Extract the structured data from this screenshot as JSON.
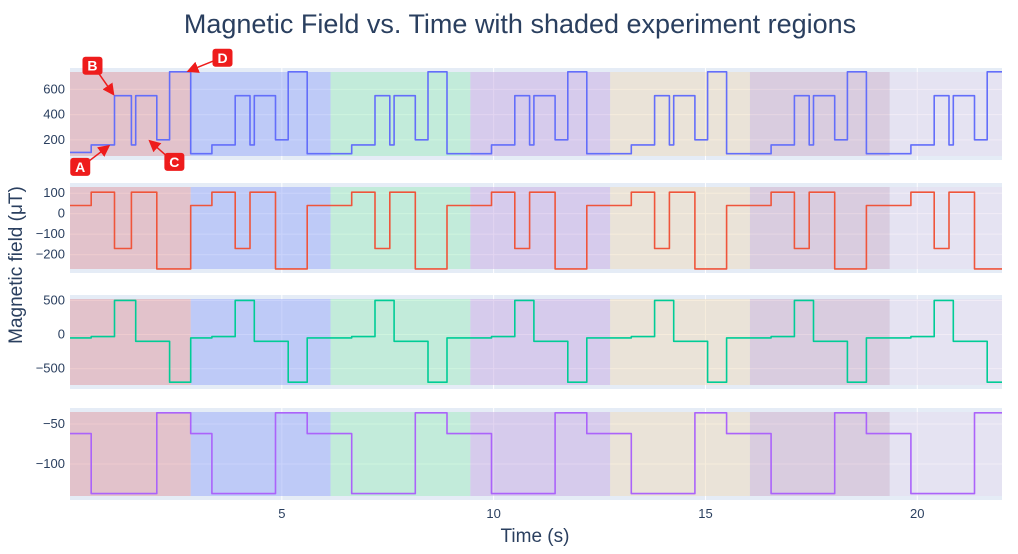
{
  "chart_data": {
    "type": "line",
    "title": "Magnetic Field vs. Time with shaded experiment regions",
    "xlabel": "Time (s)",
    "ylabel": "Magnetic field (μT)",
    "xlim": [
      0,
      22
    ],
    "x_ticks": [
      5,
      10,
      15,
      20
    ],
    "grid": true,
    "shaded_regions": [
      {
        "x0": 0.0,
        "x1": 2.85,
        "color": "#e0a0a8"
      },
      {
        "x0": 2.85,
        "x1": 6.15,
        "color": "#9faef7"
      },
      {
        "x0": 6.15,
        "x1": 9.45,
        "color": "#a6ebc2"
      },
      {
        "x0": 9.45,
        "x1": 12.75,
        "color": "#cbb1e3"
      },
      {
        "x0": 12.75,
        "x1": 16.05,
        "color": "#eedcc0"
      },
      {
        "x0": 16.05,
        "x1": 19.35,
        "color": "#cfb3cc"
      },
      {
        "x0": 19.35,
        "x1": 22.0,
        "color": "#e6dcef"
      }
    ],
    "panels": [
      {
        "color": "#636efa",
        "ylim": [
          40,
          770
        ],
        "y_ticks": [
          200,
          400,
          600
        ],
        "series": {
          "x": [
            0.0,
            0.5,
            0.5,
            1.0,
            1.05,
            1.05,
            1.45,
            1.45,
            1.55,
            1.55,
            1.95,
            2.05,
            2.05,
            2.35,
            2.35,
            2.75,
            2.85,
            2.85,
            3.35,
            3.35,
            3.85,
            3.9,
            3.9,
            4.25,
            4.25,
            4.35,
            4.35,
            4.75,
            4.85,
            4.85,
            5.15,
            5.15,
            5.55,
            5.6,
            5.6,
            6.15,
            6.65,
            6.65,
            7.15,
            7.2,
            7.2,
            7.55,
            7.55,
            7.65,
            7.65,
            8.05,
            8.15,
            8.15,
            8.45,
            8.45,
            8.85,
            8.9,
            8.9,
            9.45,
            9.95,
            9.95,
            10.45,
            10.5,
            10.5,
            10.85,
            10.85,
            10.95,
            10.95,
            11.35,
            11.45,
            11.45,
            11.75,
            11.75,
            12.15,
            12.2,
            12.2,
            12.75,
            13.25,
            13.25,
            13.75,
            13.8,
            13.8,
            14.15,
            14.15,
            14.25,
            14.25,
            14.65,
            14.75,
            14.75,
            15.05,
            15.05,
            15.45,
            15.5,
            15.5,
            16.05,
            16.55,
            16.55,
            17.05,
            17.1,
            17.1,
            17.45,
            17.45,
            17.55,
            17.55,
            17.95,
            18.05,
            18.05,
            18.35,
            18.35,
            18.75,
            18.8,
            18.8,
            19.35,
            19.85,
            19.85,
            20.35,
            20.4,
            20.4,
            20.75,
            20.75,
            20.85,
            20.85,
            21.25,
            21.35,
            21.35,
            21.65,
            21.65,
            22.0
          ],
          "y": [
            100,
            100,
            160,
            160,
            160,
            550,
            550,
            160,
            160,
            550,
            550,
            550,
            200,
            200,
            740,
            740,
            740,
            90,
            90,
            160,
            160,
            160,
            550,
            550,
            160,
            160,
            550,
            550,
            550,
            200,
            200,
            740,
            740,
            740,
            90,
            90,
            90,
            160,
            160,
            160,
            550,
            550,
            160,
            160,
            550,
            550,
            550,
            200,
            200,
            740,
            740,
            740,
            90,
            90,
            90,
            160,
            160,
            160,
            550,
            550,
            160,
            160,
            550,
            550,
            550,
            200,
            200,
            740,
            740,
            740,
            90,
            90,
            90,
            160,
            160,
            160,
            550,
            550,
            160,
            160,
            550,
            550,
            550,
            200,
            200,
            740,
            740,
            740,
            90,
            90,
            90,
            160,
            160,
            160,
            550,
            550,
            160,
            160,
            550,
            550,
            550,
            200,
            200,
            740,
            740,
            740,
            90,
            90,
            90,
            160,
            160,
            160,
            550,
            550,
            160,
            160,
            550,
            550,
            550,
            200,
            200,
            740,
            740
          ]
        }
      },
      {
        "color": "#ef553b",
        "ylim": [
          -290,
          150
        ],
        "y_ticks": [
          -200,
          -100,
          0,
          100
        ],
        "series": {
          "x": [
            0.0,
            0.5,
            0.5,
            1.0,
            1.05,
            1.05,
            1.45,
            1.45,
            1.55,
            1.55,
            1.95,
            2.05,
            2.05,
            2.35,
            2.35,
            2.75,
            2.85,
            2.85,
            3.35,
            3.35,
            3.85,
            3.9,
            3.9,
            4.25,
            4.25,
            4.35,
            4.35,
            4.75,
            4.85,
            4.85,
            5.15,
            5.15,
            5.55,
            5.6,
            5.6,
            6.15,
            6.65,
            6.65,
            7.15,
            7.2,
            7.2,
            7.55,
            7.55,
            7.65,
            7.65,
            8.05,
            8.15,
            8.15,
            8.45,
            8.45,
            8.85,
            8.9,
            8.9,
            9.45,
            9.95,
            9.95,
            10.45,
            10.5,
            10.5,
            10.85,
            10.85,
            10.95,
            10.95,
            11.35,
            11.45,
            11.45,
            11.75,
            11.75,
            12.15,
            12.2,
            12.2,
            12.75,
            13.25,
            13.25,
            13.75,
            13.8,
            13.8,
            14.15,
            14.15,
            14.25,
            14.25,
            14.65,
            14.75,
            14.75,
            15.05,
            15.05,
            15.45,
            15.5,
            15.5,
            16.05,
            16.55,
            16.55,
            17.05,
            17.1,
            17.1,
            17.45,
            17.45,
            17.55,
            17.55,
            17.95,
            18.05,
            18.05,
            18.35,
            18.35,
            18.75,
            18.8,
            18.8,
            19.35,
            19.85,
            19.85,
            20.35,
            20.4,
            20.4,
            20.75,
            20.75,
            20.85,
            20.85,
            21.25,
            21.35,
            21.35,
            21.65,
            21.65,
            22.0
          ],
          "y": [
            40,
            40,
            105,
            105,
            105,
            -170,
            -170,
            105,
            105,
            105,
            105,
            105,
            -270,
            -270,
            -270,
            -270,
            -270,
            40,
            40,
            105,
            105,
            105,
            -170,
            -170,
            105,
            105,
            105,
            105,
            105,
            -270,
            -270,
            -270,
            -270,
            -270,
            40,
            40,
            40,
            105,
            105,
            105,
            -170,
            -170,
            105,
            105,
            105,
            105,
            105,
            -270,
            -270,
            -270,
            -270,
            -270,
            40,
            40,
            40,
            105,
            105,
            105,
            -170,
            -170,
            105,
            105,
            105,
            105,
            105,
            -270,
            -270,
            -270,
            -270,
            -270,
            40,
            40,
            40,
            105,
            105,
            105,
            -170,
            -170,
            105,
            105,
            105,
            105,
            105,
            -270,
            -270,
            -270,
            -270,
            -270,
            40,
            40,
            40,
            105,
            105,
            105,
            -170,
            -170,
            105,
            105,
            105,
            105,
            105,
            -270,
            -270,
            -270,
            -270,
            -270,
            40,
            40,
            40,
            105,
            105,
            105,
            -170,
            -170,
            105,
            105,
            105,
            105,
            105,
            -270,
            -270,
            -270,
            -270
          ]
        }
      },
      {
        "color": "#00cc96",
        "ylim": [
          -800,
          580
        ],
        "y_ticks": [
          -500,
          0,
          500
        ],
        "series": {
          "x": [
            0.0,
            0.5,
            0.5,
            1.0,
            1.05,
            1.05,
            1.45,
            1.45,
            1.55,
            1.55,
            1.95,
            2.05,
            2.05,
            2.35,
            2.35,
            2.75,
            2.85,
            2.85,
            3.35,
            3.35,
            3.85,
            3.9,
            3.9,
            4.25,
            4.25,
            4.35,
            4.35,
            4.75,
            4.85,
            4.85,
            5.15,
            5.15,
            5.55,
            5.6,
            5.6,
            6.15,
            6.65,
            6.65,
            7.15,
            7.2,
            7.2,
            7.55,
            7.55,
            7.65,
            7.65,
            8.05,
            8.15,
            8.15,
            8.45,
            8.45,
            8.85,
            8.9,
            8.9,
            9.45,
            9.95,
            9.95,
            10.45,
            10.5,
            10.5,
            10.85,
            10.85,
            10.95,
            10.95,
            11.35,
            11.45,
            11.45,
            11.75,
            11.75,
            12.15,
            12.2,
            12.2,
            12.75,
            13.25,
            13.25,
            13.75,
            13.8,
            13.8,
            14.15,
            14.15,
            14.25,
            14.25,
            14.65,
            14.75,
            14.75,
            15.05,
            15.05,
            15.45,
            15.5,
            15.5,
            16.05,
            16.55,
            16.55,
            17.05,
            17.1,
            17.1,
            17.45,
            17.45,
            17.55,
            17.55,
            17.95,
            18.05,
            18.05,
            18.35,
            18.35,
            18.75,
            18.8,
            18.8,
            19.35,
            19.85,
            19.85,
            20.35,
            20.4,
            20.4,
            20.75,
            20.75,
            20.85,
            20.85,
            21.25,
            21.35,
            21.35,
            21.65,
            21.65,
            22.0
          ],
          "y": [
            -50,
            -50,
            -30,
            -30,
            -30,
            500,
            500,
            500,
            500,
            -100,
            -100,
            -100,
            -100,
            -100,
            -700,
            -700,
            -700,
            -50,
            -50,
            -30,
            -30,
            -30,
            500,
            500,
            500,
            500,
            -100,
            -100,
            -100,
            -100,
            -100,
            -700,
            -700,
            -700,
            -50,
            -50,
            -50,
            -30,
            -30,
            -30,
            500,
            500,
            500,
            500,
            -100,
            -100,
            -100,
            -100,
            -100,
            -700,
            -700,
            -700,
            -50,
            -50,
            -50,
            -30,
            -30,
            -30,
            500,
            500,
            500,
            500,
            -100,
            -100,
            -100,
            -100,
            -100,
            -700,
            -700,
            -700,
            -50,
            -50,
            -50,
            -30,
            -30,
            -30,
            500,
            500,
            500,
            500,
            -100,
            -100,
            -100,
            -100,
            -100,
            -700,
            -700,
            -700,
            -50,
            -50,
            -50,
            -30,
            -30,
            -30,
            500,
            500,
            500,
            500,
            -100,
            -100,
            -100,
            -100,
            -100,
            -700,
            -700,
            -700,
            -50,
            -50,
            -50,
            -30,
            -30,
            -30,
            500,
            500,
            500,
            500,
            -100,
            -100,
            -100,
            -100,
            -100,
            -700,
            -700
          ]
        }
      },
      {
        "color": "#ab63fa",
        "ylim": [
          -145,
          -30
        ],
        "y_ticks": [
          -100,
          -50
        ],
        "series": {
          "x": [
            0.0,
            0.5,
            0.5,
            1.0,
            1.05,
            1.05,
            1.45,
            1.45,
            1.55,
            1.55,
            1.95,
            2.05,
            2.05,
            2.35,
            2.35,
            2.75,
            2.85,
            2.85,
            3.35,
            3.35,
            3.85,
            3.9,
            3.9,
            4.25,
            4.25,
            4.35,
            4.35,
            4.75,
            4.85,
            4.85,
            5.15,
            5.15,
            5.55,
            5.6,
            5.6,
            6.15,
            6.65,
            6.65,
            7.15,
            7.2,
            7.2,
            7.55,
            7.55,
            7.65,
            7.65,
            8.05,
            8.15,
            8.15,
            8.45,
            8.45,
            8.85,
            8.9,
            8.9,
            9.45,
            9.95,
            9.95,
            10.45,
            10.5,
            10.5,
            10.85,
            10.85,
            10.95,
            10.95,
            11.35,
            11.45,
            11.45,
            11.75,
            11.75,
            12.15,
            12.2,
            12.2,
            12.75,
            13.25,
            13.25,
            13.75,
            13.8,
            13.8,
            14.15,
            14.15,
            14.25,
            14.25,
            14.65,
            14.75,
            14.75,
            15.05,
            15.05,
            15.45,
            15.5,
            15.5,
            16.05,
            16.55,
            16.55,
            17.05,
            17.1,
            17.1,
            17.45,
            17.45,
            17.55,
            17.55,
            17.95,
            18.05,
            18.05,
            18.35,
            18.35,
            18.75,
            18.8,
            18.8,
            19.35,
            19.85,
            19.85,
            20.35,
            20.4,
            20.4,
            20.75,
            20.75,
            20.85,
            20.85,
            21.25,
            21.35,
            21.35,
            21.65,
            21.65,
            22.0
          ],
          "y": [
            -62,
            -62,
            -137,
            -137,
            -137,
            -137,
            -137,
            -137,
            -137,
            -137,
            -137,
            -137,
            -36,
            -36,
            -36,
            -36,
            -36,
            -62,
            -62,
            -137,
            -137,
            -137,
            -137,
            -137,
            -137,
            -137,
            -137,
            -137,
            -137,
            -36,
            -36,
            -36,
            -36,
            -36,
            -62,
            -62,
            -62,
            -137,
            -137,
            -137,
            -137,
            -137,
            -137,
            -137,
            -137,
            -137,
            -137,
            -36,
            -36,
            -36,
            -36,
            -36,
            -62,
            -62,
            -62,
            -137,
            -137,
            -137,
            -137,
            -137,
            -137,
            -137,
            -137,
            -137,
            -137,
            -36,
            -36,
            -36,
            -36,
            -36,
            -62,
            -62,
            -62,
            -137,
            -137,
            -137,
            -137,
            -137,
            -137,
            -137,
            -137,
            -137,
            -137,
            -36,
            -36,
            -36,
            -36,
            -36,
            -62,
            -62,
            -62,
            -137,
            -137,
            -137,
            -137,
            -137,
            -137,
            -137,
            -137,
            -137,
            -137,
            -36,
            -36,
            -36,
            -36,
            -36,
            -62,
            -62,
            -62,
            -137,
            -137,
            -137,
            -137,
            -137,
            -137,
            -137,
            -137,
            -137,
            -137,
            -36,
            -36,
            -36,
            -36
          ]
        }
      }
    ],
    "annotations": [
      {
        "label": "A",
        "panel": 0,
        "x": 0.95,
        "y": 160
      },
      {
        "label": "B",
        "panel": 0,
        "x": 1.05,
        "y": 550
      },
      {
        "label": "C",
        "panel": 0,
        "x": 1.85,
        "y": 200
      },
      {
        "label": "D",
        "panel": 0,
        "x": 2.75,
        "y": 740
      }
    ],
    "annotation_color": "#ee1c1c"
  }
}
